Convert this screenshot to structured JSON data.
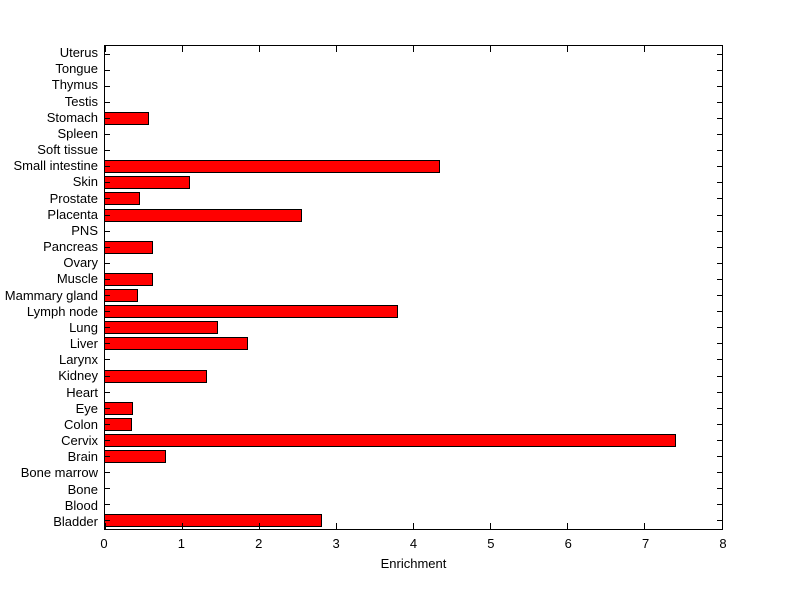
{
  "figure": {
    "background": "#ffffff"
  },
  "chart_data": {
    "type": "bar",
    "orientation": "horizontal",
    "title": "",
    "xlabel": "Enrichment",
    "ylabel": "",
    "xlim": [
      0,
      8
    ],
    "xticks": [
      "0",
      "1",
      "2",
      "3",
      "4",
      "5",
      "6",
      "7",
      "8"
    ],
    "grid": false,
    "legend": false,
    "bar_color": "#ff0000",
    "bar_edge_color": "#000000",
    "axis_color": "#000000",
    "categories": [
      "Uterus",
      "Tongue",
      "Thymus",
      "Testis",
      "Stomach",
      "Spleen",
      "Soft tissue",
      "Small intestine",
      "Skin",
      "Prostate",
      "Placenta",
      "PNS",
      "Pancreas",
      "Ovary",
      "Muscle",
      "Mammary gland",
      "Lymph node",
      "Lung",
      "Liver",
      "Larynx",
      "Kidney",
      "Heart",
      "Eye",
      "Colon",
      "Cervix",
      "Brain",
      "Bone marrow",
      "Bone",
      "Blood",
      "Bladder"
    ],
    "values": [
      0,
      0,
      0,
      0,
      0.57,
      0,
      0,
      4.34,
      1.1,
      0.46,
      2.56,
      0,
      0.62,
      0,
      0.62,
      0.43,
      3.8,
      1.47,
      1.85,
      0,
      1.32,
      0,
      0.36,
      0.35,
      7.4,
      0.79,
      0,
      0,
      0,
      2.81
    ]
  }
}
